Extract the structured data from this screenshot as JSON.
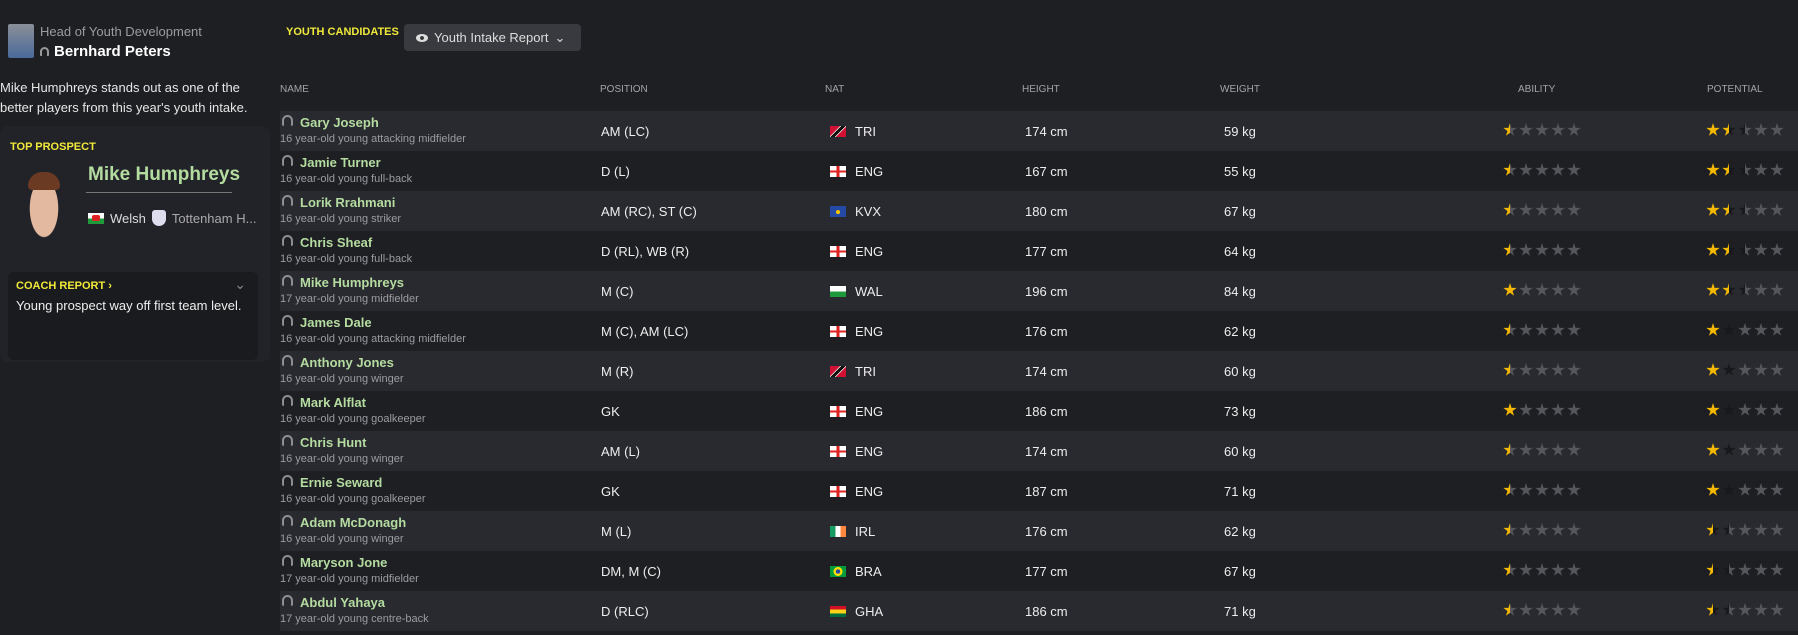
{
  "staff": {
    "role": "Head of Youth Development",
    "name": "Bernhard Peters"
  },
  "intro": "Mike Humphreys stands out as one of the better players from this year's youth intake.",
  "top_prospect": {
    "label": "TOP PROSPECT",
    "name": "Mike Humphreys",
    "nationality": "Welsh",
    "club": "Tottenham H..."
  },
  "coach_report": {
    "label": "COACH REPORT",
    "text": "Young prospect way off first team level."
  },
  "section": {
    "title": "YOUTH CANDIDATES",
    "view": "Youth Intake Report"
  },
  "columns": [
    "NAME",
    "POSITION",
    "NAT",
    "HEIGHT",
    "WEIGHT",
    "ABILITY",
    "POTENTIAL"
  ],
  "colors": {
    "accent": "#f0e93a",
    "name": "#b4dca0",
    "star": "#f5b800",
    "star_range": "#17181b",
    "star_empty": "#55575c"
  },
  "players": [
    {
      "name": "Gary Joseph",
      "desc": "16 year-old young attacking midfielder",
      "position": "AM (LC)",
      "nat": "TRI",
      "height": "174 cm",
      "weight": "59 kg",
      "ability": 0.5,
      "potential": [
        1.5,
        2.5
      ]
    },
    {
      "name": "Jamie Turner",
      "desc": "16 year-old young full-back",
      "position": "D (L)",
      "nat": "ENG",
      "height": "167 cm",
      "weight": "55 kg",
      "ability": 0.5,
      "potential": [
        1.5,
        2.5
      ]
    },
    {
      "name": "Lorik Rrahmani",
      "desc": "16 year-old young striker",
      "position": "AM (RC), ST (C)",
      "nat": "KVX",
      "height": "180 cm",
      "weight": "67 kg",
      "ability": 0.5,
      "potential": [
        1.5,
        2.5
      ]
    },
    {
      "name": "Chris Sheaf",
      "desc": "16 year-old young full-back",
      "position": "D (RL), WB (R)",
      "nat": "ENG",
      "height": "177 cm",
      "weight": "64 kg",
      "ability": 0.5,
      "potential": [
        1.5,
        2.5
      ]
    },
    {
      "name": "Mike Humphreys",
      "desc": "17 year-old young midfielder",
      "position": "M (C)",
      "nat": "WAL",
      "height": "196 cm",
      "weight": "84 kg",
      "ability": 1,
      "potential": [
        1.5,
        2.5
      ]
    },
    {
      "name": "James Dale",
      "desc": "16 year-old young attacking midfielder",
      "position": "M (C), AM (LC)",
      "nat": "ENG",
      "height": "176 cm",
      "weight": "62 kg",
      "ability": 0.5,
      "potential": [
        1,
        2
      ]
    },
    {
      "name": "Anthony Jones",
      "desc": "16 year-old young winger",
      "position": "M (R)",
      "nat": "TRI",
      "height": "174 cm",
      "weight": "60 kg",
      "ability": 0.5,
      "potential": [
        1,
        2
      ]
    },
    {
      "name": "Mark Alflat",
      "desc": "16 year-old young goalkeeper",
      "position": "GK",
      "nat": "ENG",
      "height": "186 cm",
      "weight": "73 kg",
      "ability": 1,
      "potential": [
        1,
        2
      ]
    },
    {
      "name": "Chris Hunt",
      "desc": "16 year-old young winger",
      "position": "AM (L)",
      "nat": "ENG",
      "height": "174 cm",
      "weight": "60 kg",
      "ability": 0.5,
      "potential": [
        1,
        2
      ]
    },
    {
      "name": "Ernie Seward",
      "desc": "16 year-old young goalkeeper",
      "position": "GK",
      "nat": "ENG",
      "height": "187 cm",
      "weight": "71 kg",
      "ability": 0.5,
      "potential": [
        1,
        2
      ]
    },
    {
      "name": "Adam McDonagh",
      "desc": "16 year-old young winger",
      "position": "M (L)",
      "nat": "IRL",
      "height": "176 cm",
      "weight": "62 kg",
      "ability": 0.5,
      "potential": [
        0.5,
        1.5
      ]
    },
    {
      "name": "Maryson Jone",
      "desc": "17 year-old young midfielder",
      "position": "DM, M (C)",
      "nat": "BRA",
      "height": "177 cm",
      "weight": "67 kg",
      "ability": 0.5,
      "potential": [
        0.5,
        1.5
      ]
    },
    {
      "name": "Abdul Yahaya",
      "desc": "17 year-old young centre-back",
      "position": "D (RLC)",
      "nat": "GHA",
      "height": "186 cm",
      "weight": "71 kg",
      "ability": 0.5,
      "potential": [
        0.5,
        1.5
      ]
    }
  ]
}
